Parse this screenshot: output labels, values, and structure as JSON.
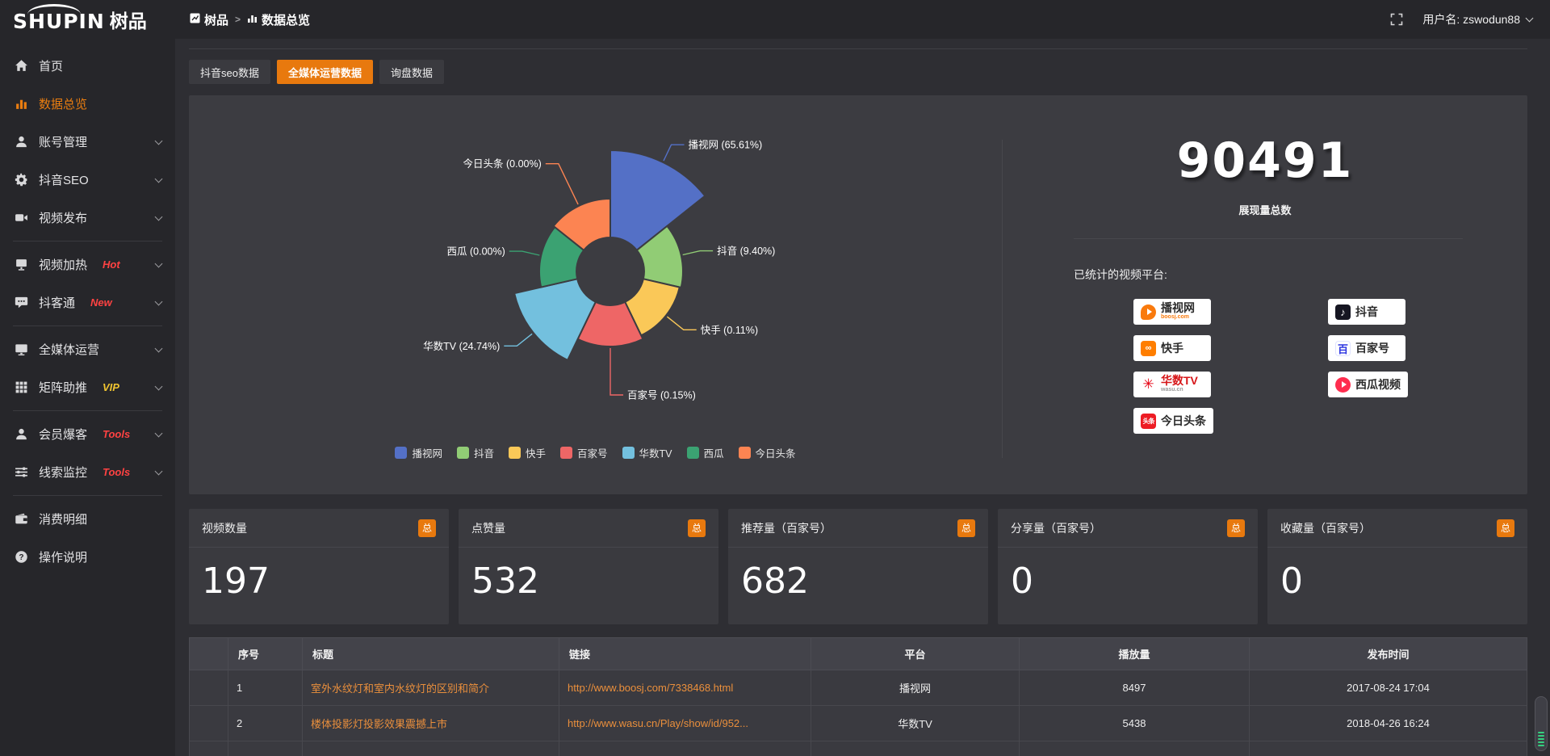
{
  "topbar": {
    "logo_en": "SHUPIN",
    "logo_cn": "树品",
    "breadcrumb": [
      {
        "label": "树品"
      },
      {
        "label": "数据总览"
      }
    ],
    "username": "用户名: zswodun88"
  },
  "sidebar": {
    "items": [
      {
        "icon": "home-icon",
        "label": "首页"
      },
      {
        "icon": "bar-chart-icon",
        "label": "数据总览",
        "active": true
      },
      {
        "icon": "user-icon",
        "label": "账号管理",
        "chevron": true
      },
      {
        "icon": "gear-icon",
        "label": "抖音SEO",
        "chevron": true
      },
      {
        "icon": "video-camera-icon",
        "label": "视频发布",
        "chevron": true,
        "divider_after": true
      },
      {
        "icon": "screen-icon",
        "label": "视频加热",
        "badge": "Hot",
        "badge_color": "#ff4242",
        "chevron": true
      },
      {
        "icon": "chat-bubble-icon",
        "label": "抖客通",
        "badge": "New",
        "badge_color": "#ff4242",
        "chevron": true,
        "divider_after": true
      },
      {
        "icon": "monitor-icon",
        "label": "全媒体运营",
        "chevron": true
      },
      {
        "icon": "grid-icon",
        "label": "矩阵助推",
        "badge": "VIP",
        "badge_color": "#f0c430",
        "chevron": true,
        "divider_after": true
      },
      {
        "icon": "member-icon",
        "label": "会员爆客",
        "badge": "Tools",
        "badge_color": "#ff4242",
        "chevron": true
      },
      {
        "icon": "sliders-icon",
        "label": "线索监控",
        "badge": "Tools",
        "badge_color": "#ff4242",
        "chevron": true,
        "divider_after": true
      },
      {
        "icon": "wallet-icon",
        "label": "消费明细"
      },
      {
        "icon": "question-icon",
        "label": "操作说明"
      }
    ]
  },
  "tabs": [
    {
      "label": "抖音seo数据",
      "active": false
    },
    {
      "label": "全媒体运营数据",
      "active": true
    },
    {
      "label": "询盘数据",
      "active": false
    }
  ],
  "chart_data": {
    "type": "pie",
    "subtype": "nightingale-rose",
    "labels": [
      "播视网",
      "抖音",
      "快手",
      "百家号",
      "华数TV",
      "西瓜",
      "今日头条"
    ],
    "values_percent": [
      65.61,
      9.4,
      0.11,
      0.15,
      24.74,
      0,
      0
    ],
    "colors": [
      "#5470c6",
      "#91cc75",
      "#fac858",
      "#ee6666",
      "#73c0de",
      "#3ba272",
      "#fc8452"
    ],
    "label_format": "{name} ({value}%)",
    "legend_position": "bottom",
    "inner_radius": 42,
    "display_outer_radii": [
      150,
      90,
      88,
      93,
      122,
      88,
      90
    ],
    "leader_ext": [
      22,
      22,
      26,
      58,
      24,
      22,
      56
    ]
  },
  "summary": {
    "total": "90491",
    "total_label": "展现量总数",
    "platforms_heading": "已统计的视频平台:",
    "platforms": [
      {
        "name": "播视网",
        "sub": "boosj.com",
        "icon": "boosj-icon"
      },
      {
        "name": "抖音",
        "icon": "douyin-icon"
      },
      {
        "name": "快手",
        "icon": "kuaishou-icon"
      },
      {
        "name": "百家号",
        "icon": "baijiahao-icon"
      },
      {
        "name": "华数TV",
        "sub": "wasu.cn",
        "icon": "wasu-icon"
      },
      {
        "name": "西瓜视频",
        "icon": "xigua-icon"
      },
      {
        "name": "今日头条",
        "icon": "toutiao-icon"
      }
    ]
  },
  "stats": [
    {
      "label": "视频数量",
      "badge": "总",
      "value": "197"
    },
    {
      "label": "点赞量",
      "badge": "总",
      "value": "532"
    },
    {
      "label": "推荐量（百家号）",
      "badge": "总",
      "value": "682"
    },
    {
      "label": "分享量（百家号）",
      "badge": "总",
      "value": "0"
    },
    {
      "label": "收藏量（百家号）",
      "badge": "总",
      "value": "0"
    }
  ],
  "table": {
    "headers": [
      "序号",
      "标题",
      "链接",
      "平台",
      "播放量",
      "发布时间"
    ],
    "rows": [
      {
        "num": "1",
        "title": "室外水纹灯和室内水纹灯的区别和简介",
        "link": "http://www.boosj.com/7338468.html",
        "platform": "播视网",
        "plays": "8497",
        "time": "2017-08-24 17:04"
      },
      {
        "num": "2",
        "title": "楼体投影灯投影效果震撼上市",
        "link": "http://www.wasu.cn/Play/show/id/952...",
        "platform": "华数TV",
        "plays": "5438",
        "time": "2018-04-26 16:24"
      },
      {
        "num": "",
        "title": "",
        "link": "",
        "platform": "",
        "plays": "",
        "time": "",
        "partial": true
      }
    ]
  }
}
